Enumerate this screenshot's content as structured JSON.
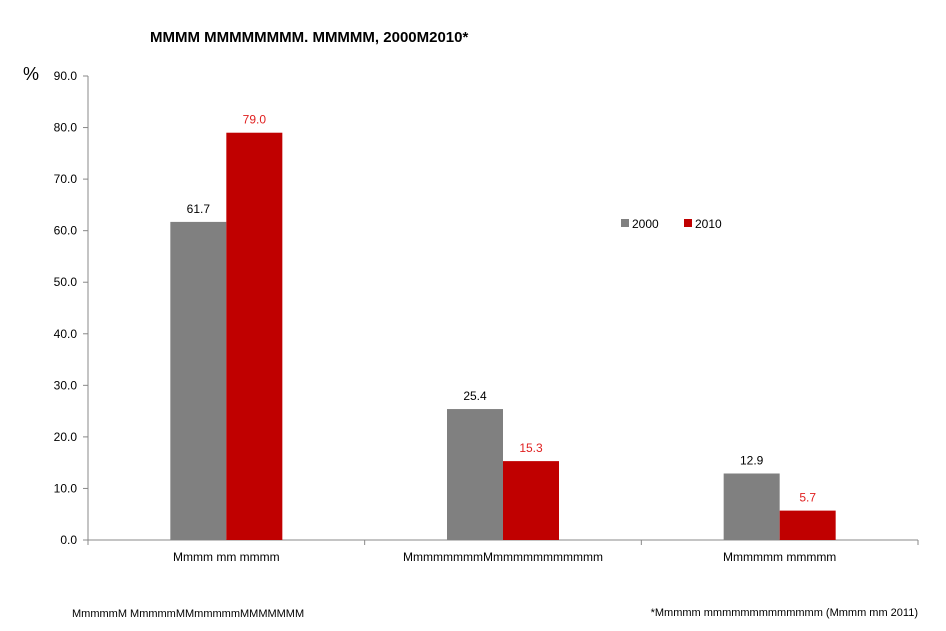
{
  "chart_data": {
    "type": "bar",
    "title": "MMMM MMMMMMMM. MMMMM, 2000M2010*",
    "ylabel": "%",
    "xlabel": "",
    "ylim": [
      0,
      90
    ],
    "ytick_step": 10,
    "ytick_labels": [
      "0.0",
      "10.0",
      "20.0",
      "30.0",
      "40.0",
      "50.0",
      "60.0",
      "70.0",
      "80.0",
      "90.0"
    ],
    "categories": [
      "Mmmm mm mmmm",
      "MmmmmmmmMmmmmmmmmmmm",
      "Mmmmmm mmmmm"
    ],
    "series": [
      {
        "name": "2000",
        "values": [
          61.7,
          25.4,
          12.9
        ],
        "labels": [
          "61.7",
          "25.4",
          "12.9"
        ],
        "color": "#808080",
        "label_color": "#000000"
      },
      {
        "name": "2010",
        "values": [
          79.0,
          15.3,
          5.7
        ],
        "labels": [
          "79.0",
          "15.3",
          "5.7"
        ],
        "color": "#c00000",
        "label_color": "#e02020"
      }
    ],
    "grid": false,
    "legend_position": "right"
  },
  "footer": {
    "left_note": "MmmmmM MmmmmMMmmmmmMMMMMMM",
    "right_note": "*Mmmmm mmmmmmmmmmmmm (Mmmm mm 2011)"
  }
}
